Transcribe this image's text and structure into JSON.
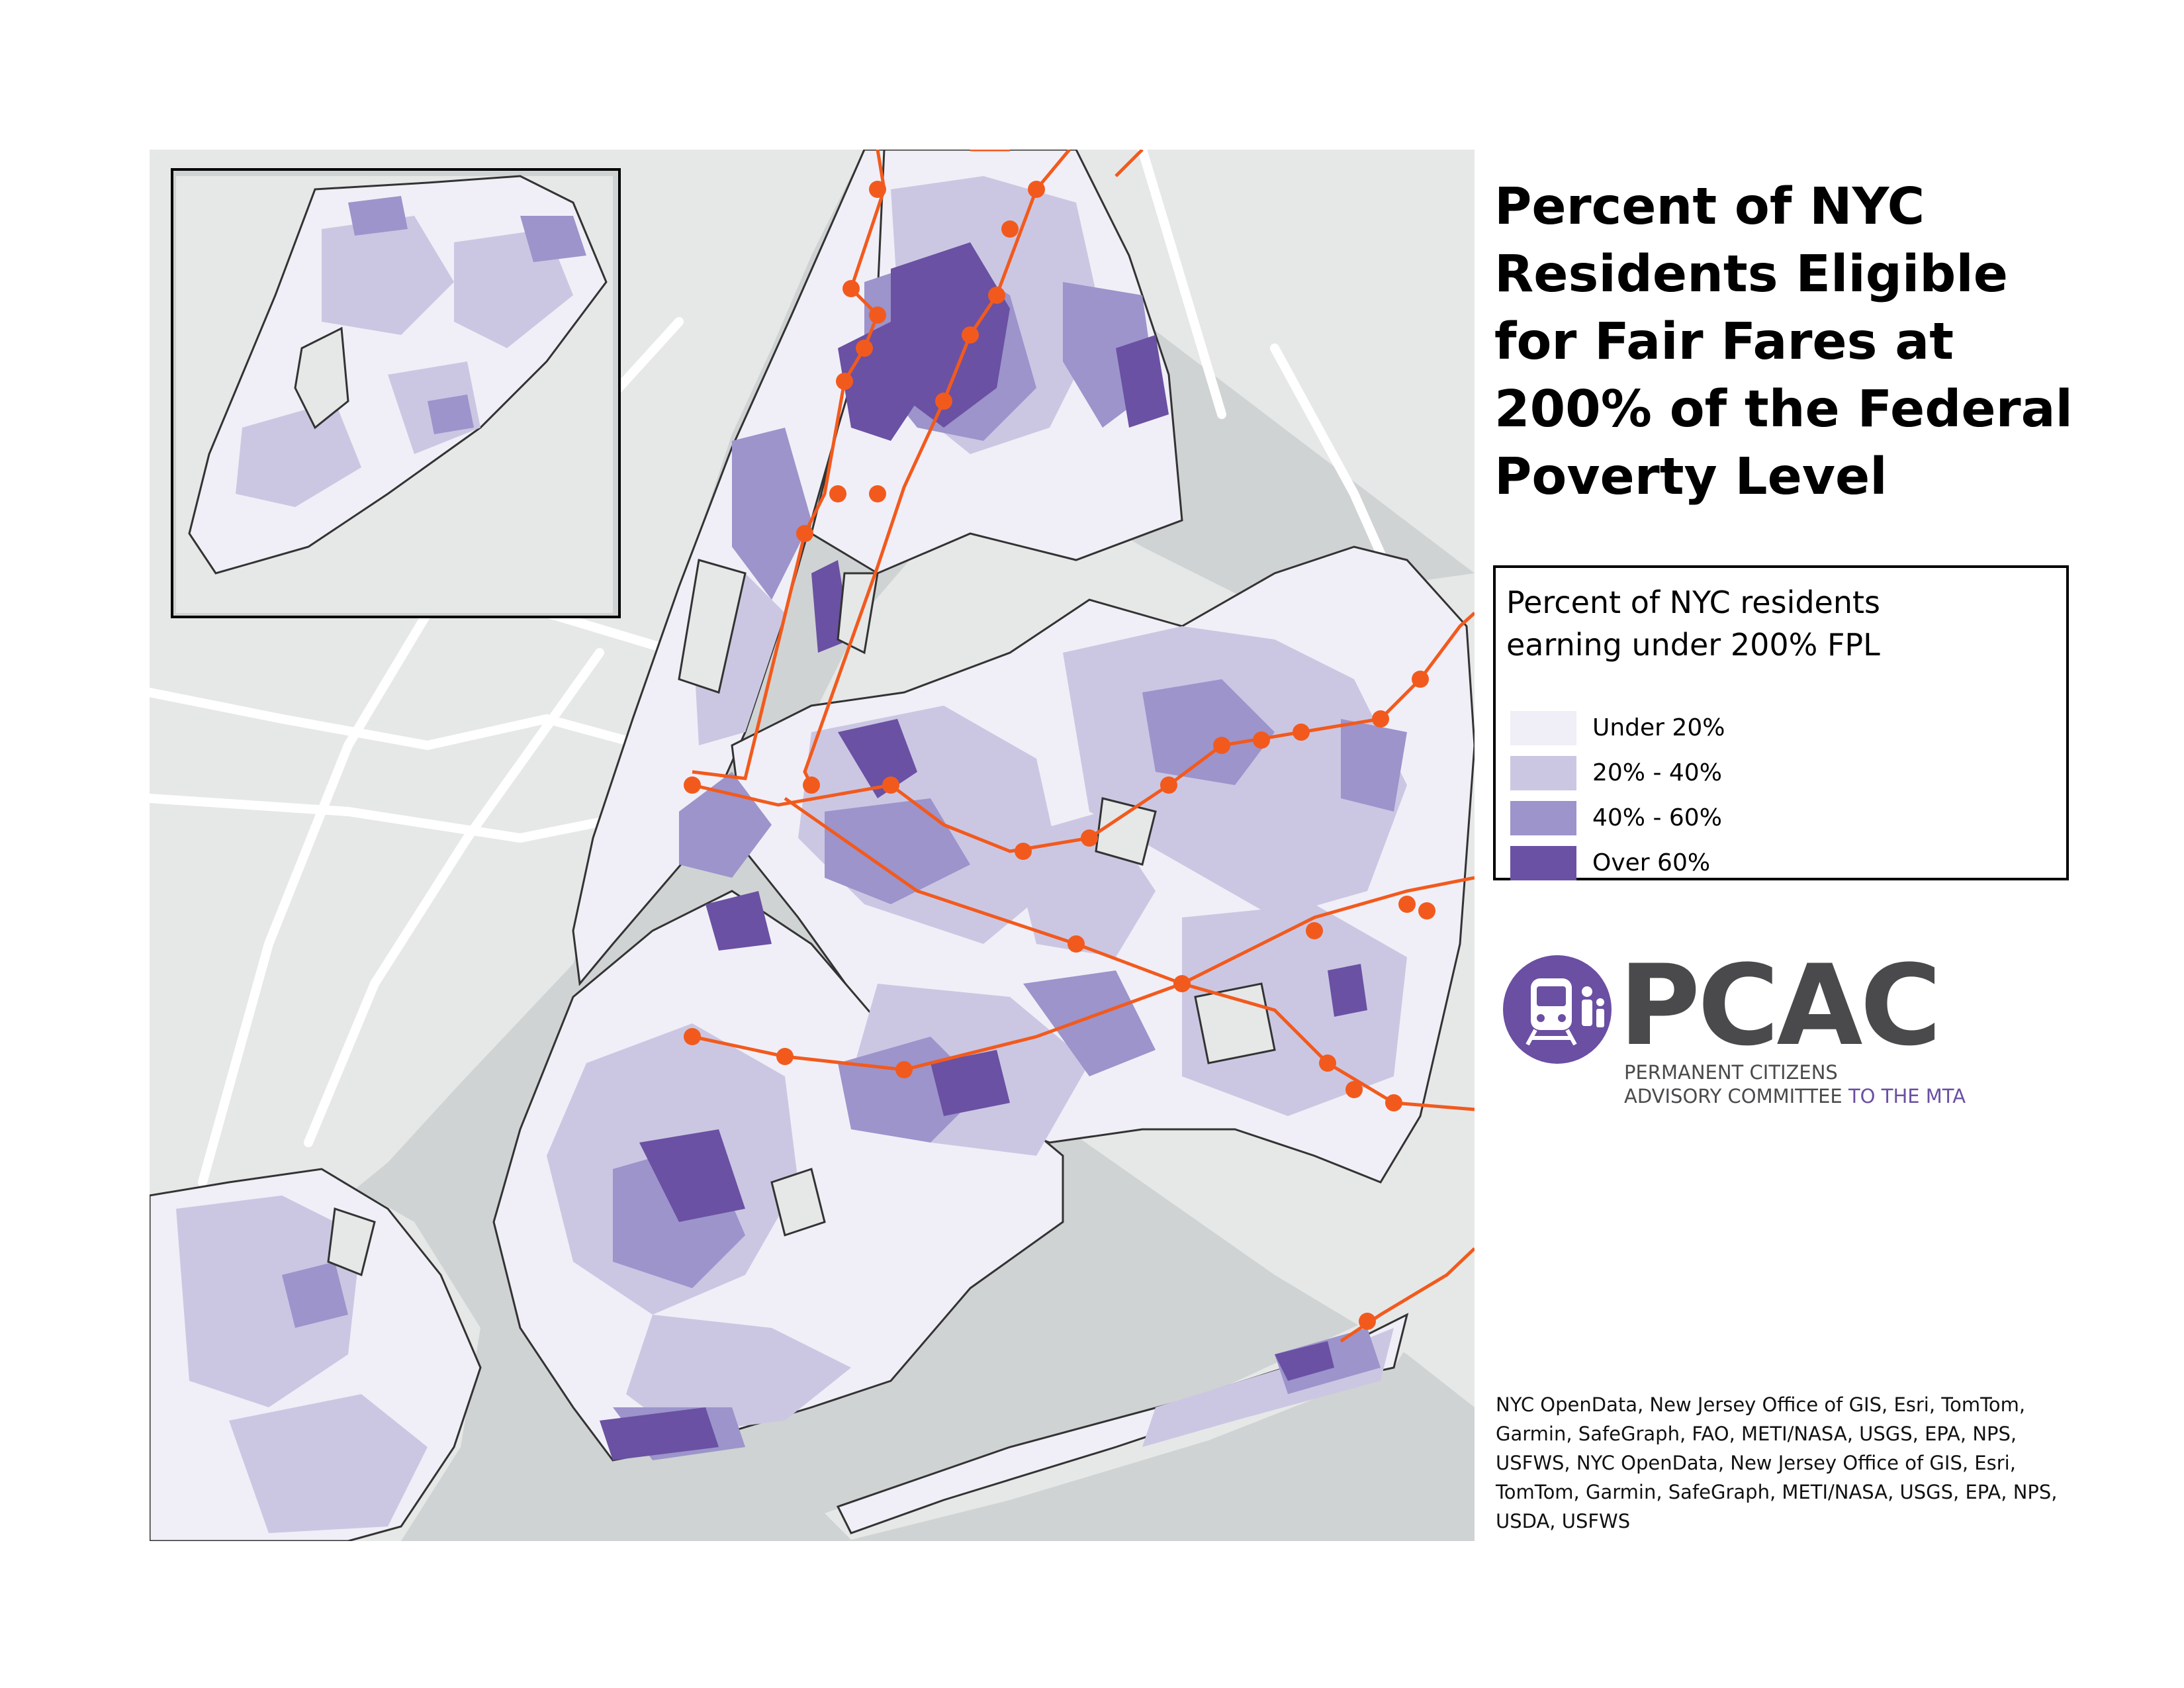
{
  "title_lines": [
    "Percent of NYC",
    "Residents Eligible",
    "for Fair Fares at",
    "200% of the Federal",
    "Poverty Level"
  ],
  "legend": {
    "title_lines": [
      "Percent of NYC residents",
      "earning under 200% FPL"
    ],
    "items": [
      {
        "label": "Under 20%",
        "color": "#f0eff7"
      },
      {
        "label": "20% - 40%",
        "color": "#cbc7e3"
      },
      {
        "label": "40% - 60%",
        "color": "#9c94cb"
      },
      {
        "label": "Over 60%",
        "color": "#6a51a3"
      }
    ]
  },
  "map_colors": {
    "water": "#cfd3d3",
    "land": "#e6e8e8",
    "roads": "#ffffff",
    "subway": "#f25a1d"
  },
  "logo": {
    "name": "PCAC",
    "line1": "PERMANENT CITIZENS",
    "line2_main": "ADVISORY COMMITTEE",
    "line2_accent": "TO THE MTA",
    "brand_color": "#6a4fa3",
    "text_color": "#4a4a4c"
  },
  "credits": "NYC OpenData, New Jersey Office of GIS, Esri, TomTom, Garmin, SafeGraph, FAO, METI/NASA, USGS, EPA, NPS, USFWS, NYC OpenData, New Jersey Office of GIS, Esri, TomTom, Garmin, SafeGraph, METI/NASA, USGS, EPA, NPS, USDA, USFWS"
}
